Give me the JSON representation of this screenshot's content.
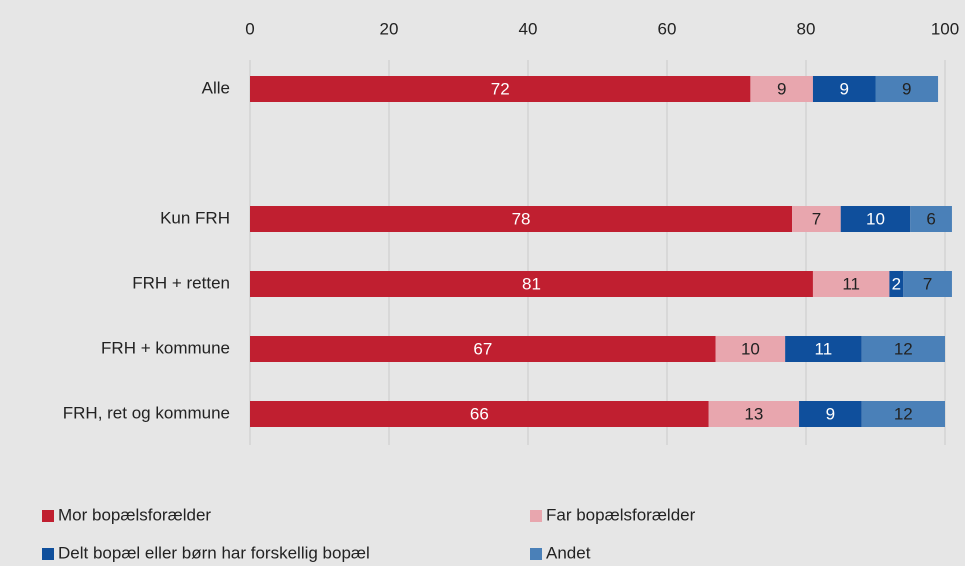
{
  "chart_data": {
    "type": "stacked-barh",
    "categories": [
      "Alle",
      null,
      "Kun FRH",
      "FRH + retten",
      "FRH + kommune",
      "FRH, ret og kommune"
    ],
    "series": [
      {
        "name": "Mor bopælsforælder",
        "color": "#c01f30",
        "values": [
          72,
          null,
          78,
          81,
          67,
          66
        ]
      },
      {
        "name": "Far bopælsforælder",
        "color": "#e8a6ae",
        "values": [
          9,
          null,
          7,
          11,
          10,
          13
        ]
      },
      {
        "name": "Delt bopæl eller børn har forskellig bopæl",
        "color": "#0f4f9c",
        "values": [
          9,
          null,
          10,
          2,
          11,
          9
        ]
      },
      {
        "name": "Andet",
        "color": "#4a80b8",
        "values": [
          9,
          null,
          6,
          7,
          12,
          12
        ]
      }
    ],
    "xlim": [
      0,
      100
    ],
    "xticks": [
      0,
      20,
      40,
      60,
      80,
      100
    ],
    "grid": true,
    "legend": "bottom"
  }
}
